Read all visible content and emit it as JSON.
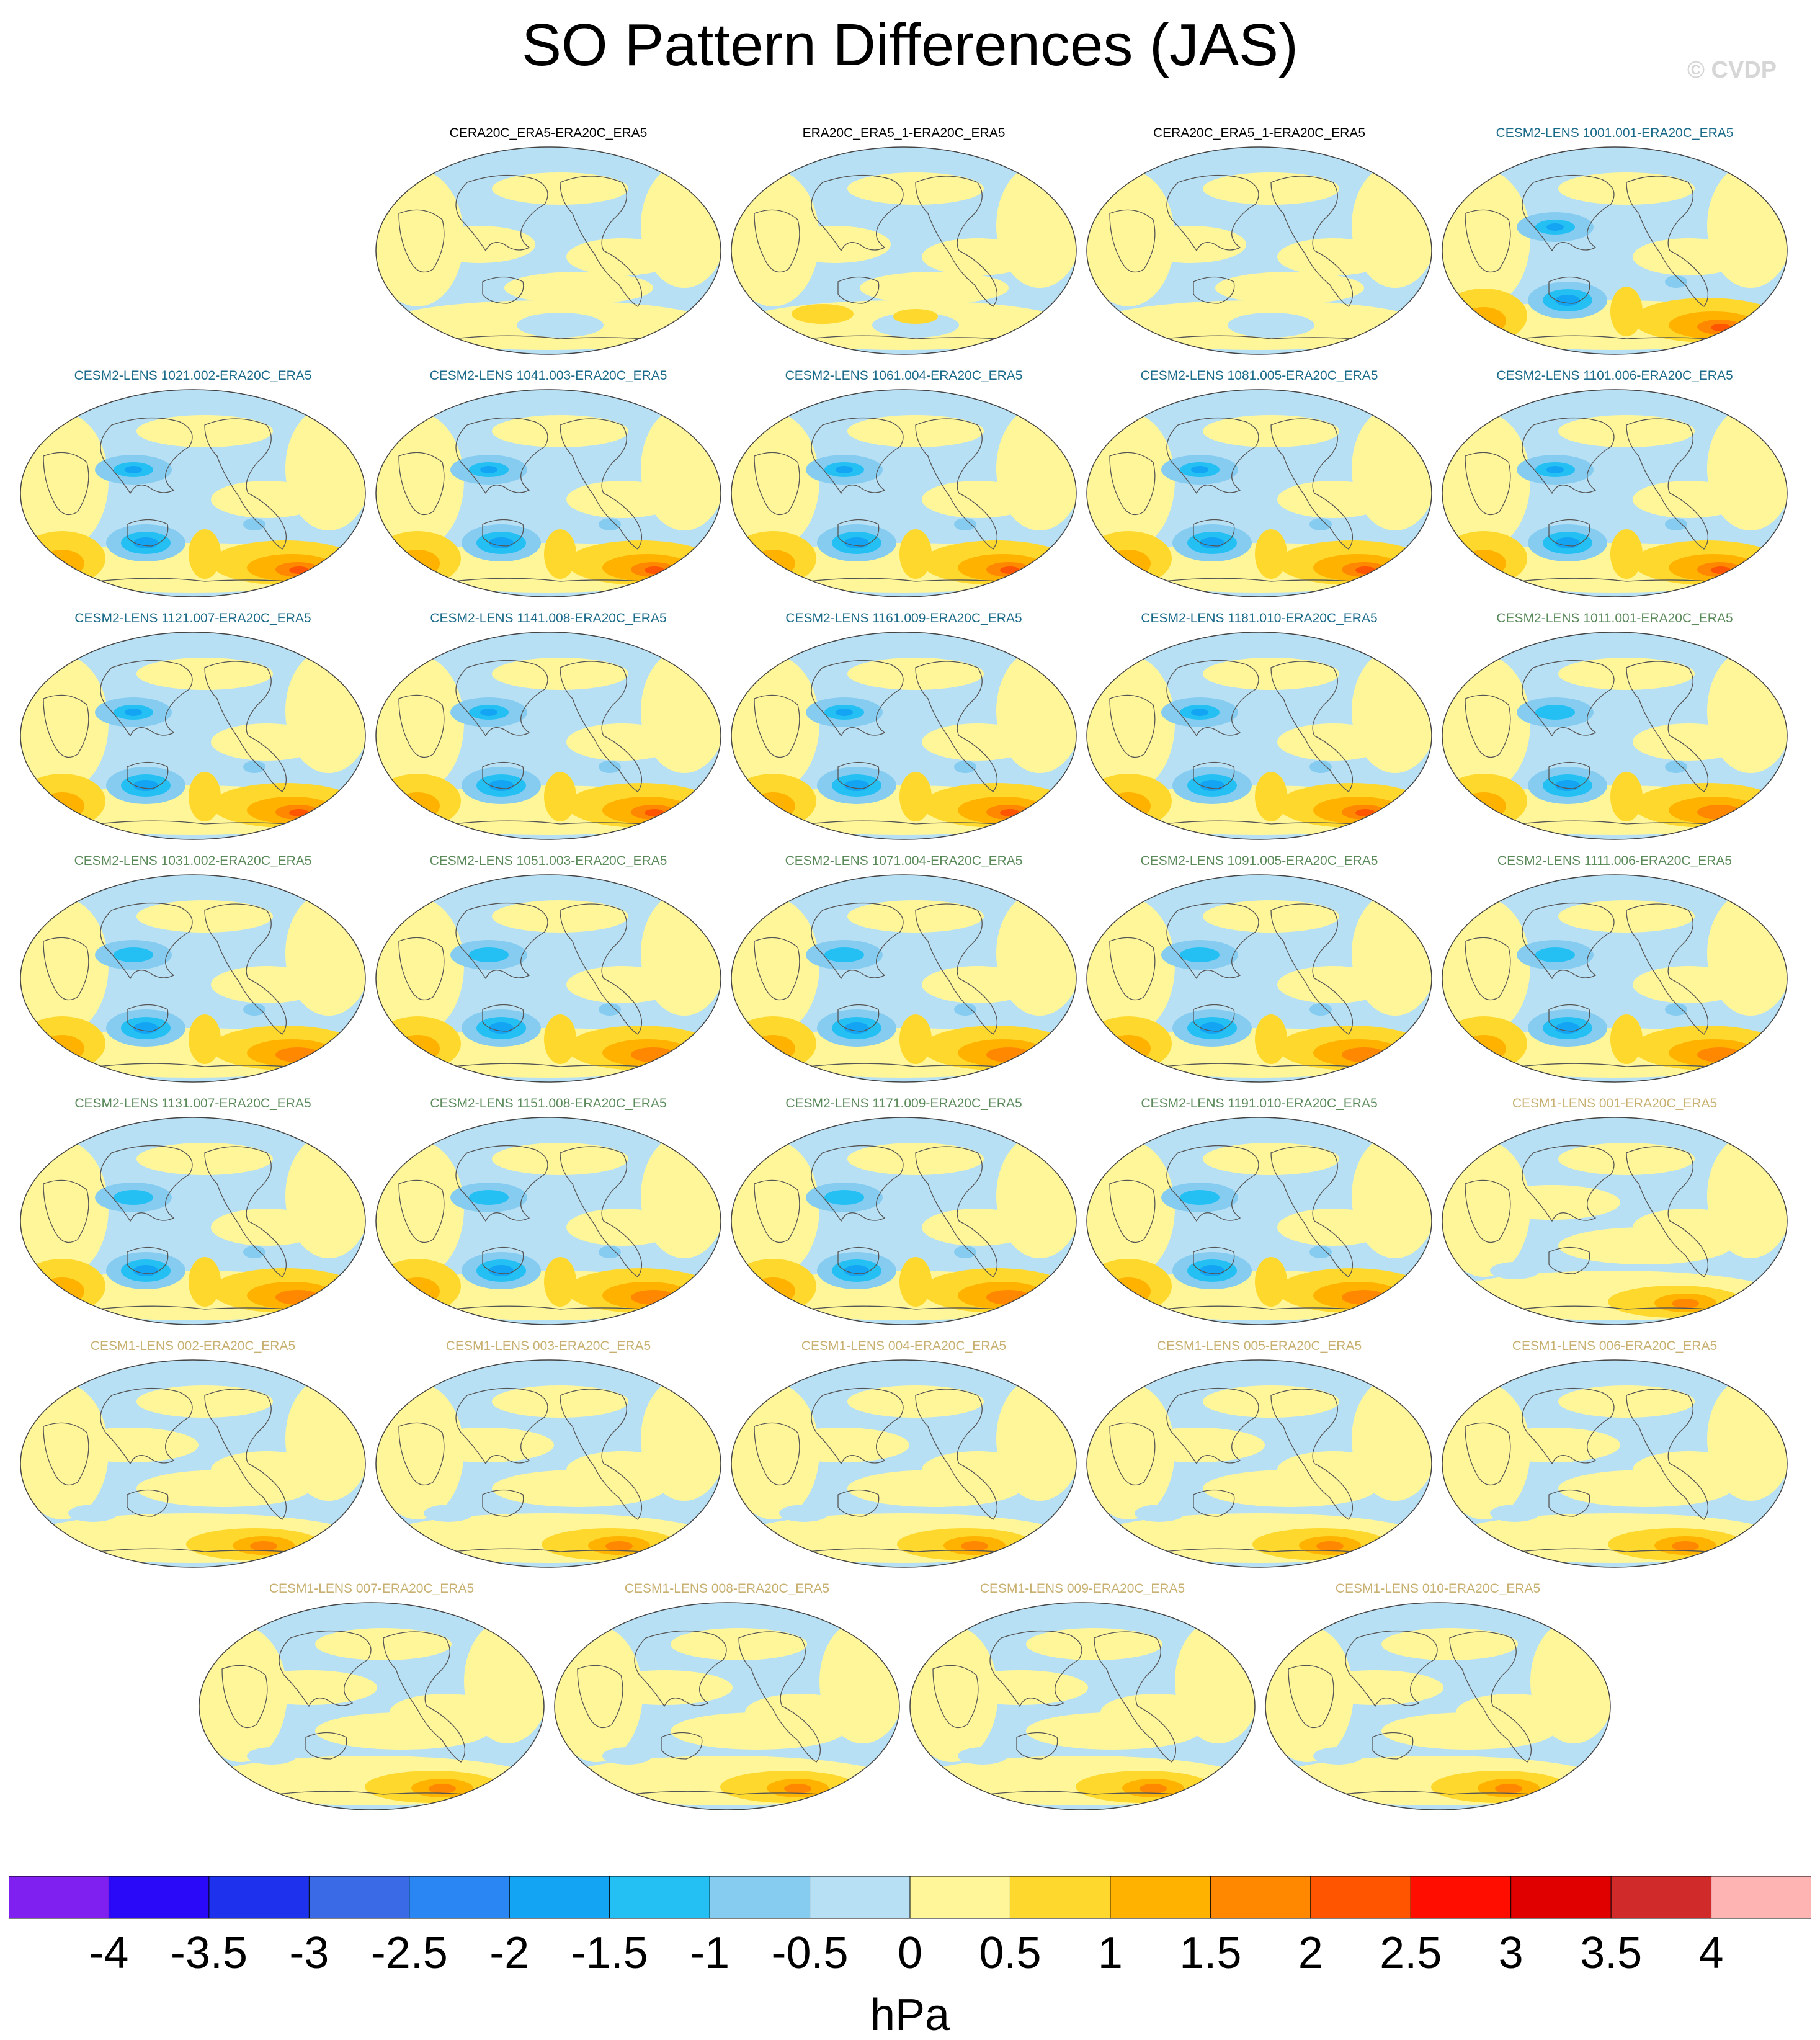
{
  "title": "SO Pattern Differences (JAS)",
  "watermark": "© CVDP",
  "label_colors": {
    "reanalysis": "#000000",
    "cesm2_a": "#1a6a8a",
    "cesm2_b": "#5a8a5a",
    "cesm1": "#c8b070"
  },
  "panels": [
    {
      "label": "CERA20C_ERA5-ERA20C_ERA5",
      "group": "reanalysis"
    },
    {
      "label": "ERA20C_ERA5_1-ERA20C_ERA5",
      "group": "reanalysis"
    },
    {
      "label": "CERA20C_ERA5_1-ERA20C_ERA5",
      "group": "reanalysis"
    },
    {
      "label": "CESM2-LENS 1001.001-ERA20C_ERA5",
      "group": "cesm2_a"
    },
    {
      "label": "CESM2-LENS 1021.002-ERA20C_ERA5",
      "group": "cesm2_a"
    },
    {
      "label": "CESM2-LENS 1041.003-ERA20C_ERA5",
      "group": "cesm2_a"
    },
    {
      "label": "CESM2-LENS 1061.004-ERA20C_ERA5",
      "group": "cesm2_a"
    },
    {
      "label": "CESM2-LENS 1081.005-ERA20C_ERA5",
      "group": "cesm2_a"
    },
    {
      "label": "CESM2-LENS 1101.006-ERA20C_ERA5",
      "group": "cesm2_a"
    },
    {
      "label": "CESM2-LENS 1121.007-ERA20C_ERA5",
      "group": "cesm2_a"
    },
    {
      "label": "CESM2-LENS 1141.008-ERA20C_ERA5",
      "group": "cesm2_a"
    },
    {
      "label": "CESM2-LENS 1161.009-ERA20C_ERA5",
      "group": "cesm2_a"
    },
    {
      "label": "CESM2-LENS 1181.010-ERA20C_ERA5",
      "group": "cesm2_a"
    },
    {
      "label": "CESM2-LENS 1011.001-ERA20C_ERA5",
      "group": "cesm2_b"
    },
    {
      "label": "CESM2-LENS 1031.002-ERA20C_ERA5",
      "group": "cesm2_b"
    },
    {
      "label": "CESM2-LENS 1051.003-ERA20C_ERA5",
      "group": "cesm2_b"
    },
    {
      "label": "CESM2-LENS 1071.004-ERA20C_ERA5",
      "group": "cesm2_b"
    },
    {
      "label": "CESM2-LENS 1091.005-ERA20C_ERA5",
      "group": "cesm2_b"
    },
    {
      "label": "CESM2-LENS 1111.006-ERA20C_ERA5",
      "group": "cesm2_b"
    },
    {
      "label": "CESM2-LENS 1131.007-ERA20C_ERA5",
      "group": "cesm2_b"
    },
    {
      "label": "CESM2-LENS 1151.008-ERA20C_ERA5",
      "group": "cesm2_b"
    },
    {
      "label": "CESM2-LENS 1171.009-ERA20C_ERA5",
      "group": "cesm2_b"
    },
    {
      "label": "CESM2-LENS 1191.010-ERA20C_ERA5",
      "group": "cesm2_b"
    },
    {
      "label": "CESM1-LENS 001-ERA20C_ERA5",
      "group": "cesm1"
    },
    {
      "label": "CESM1-LENS 002-ERA20C_ERA5",
      "group": "cesm1"
    },
    {
      "label": "CESM1-LENS 003-ERA20C_ERA5",
      "group": "cesm1"
    },
    {
      "label": "CESM1-LENS 004-ERA20C_ERA5",
      "group": "cesm1"
    },
    {
      "label": "CESM1-LENS 005-ERA20C_ERA5",
      "group": "cesm1"
    },
    {
      "label": "CESM1-LENS 006-ERA20C_ERA5",
      "group": "cesm1"
    },
    {
      "label": "CESM1-LENS 007-ERA20C_ERA5",
      "group": "cesm1"
    },
    {
      "label": "CESM1-LENS 008-ERA20C_ERA5",
      "group": "cesm1"
    },
    {
      "label": "CESM1-LENS 009-ERA20C_ERA5",
      "group": "cesm1"
    },
    {
      "label": "CESM1-LENS 010-ERA20C_ERA5",
      "group": "cesm1"
    }
  ],
  "chart_data": {
    "type": "heatmap",
    "title": "SO Pattern Differences (JAS)",
    "colorbar": {
      "units": "hPa",
      "levels": [
        -4,
        -3.5,
        -3,
        -2.5,
        -2,
        -1.5,
        -1,
        -0.5,
        0,
        0.5,
        1,
        1.5,
        2,
        2.5,
        3,
        3.5,
        4
      ],
      "tick_labels": [
        "-4",
        "-3.5",
        "-3",
        "-2.5",
        "-2",
        "-1.5",
        "-1",
        "-0.5",
        "0",
        "0.5",
        "1",
        "1.5",
        "2",
        "2.5",
        "3",
        "3.5",
        "4"
      ],
      "colors": [
        "#7f1ff0",
        "#2a08f8",
        "#1e32ee",
        "#3a6ae6",
        "#2a86f2",
        "#14a4f4",
        "#24c0f4",
        "#86ccf0",
        "#b8e0f4",
        "#fff69a",
        "#ffd82e",
        "#ffb200",
        "#ff8800",
        "#ff5400",
        "#ff0e00",
        "#e00000",
        "#d02a2a",
        "#ffb4b4"
      ]
    }
  }
}
